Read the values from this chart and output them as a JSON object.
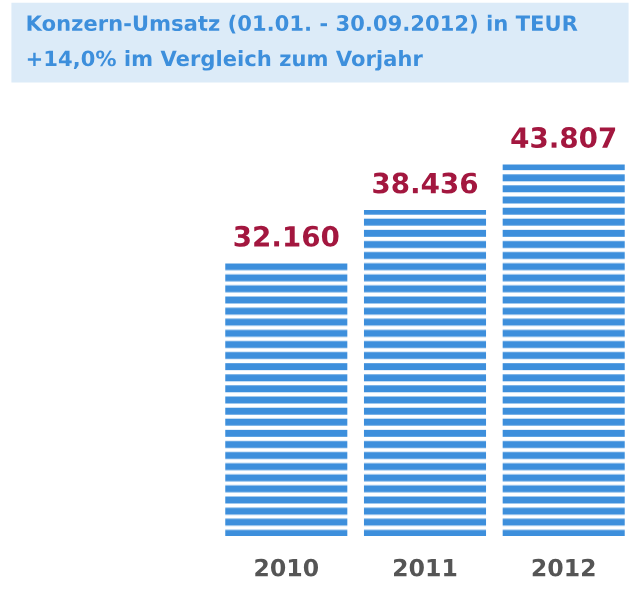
{
  "chart_data": {
    "type": "bar",
    "title": "Konzern-Umsatz (01.01. - 30.09.2012) in TEUR",
    "subtitle": "+14,0% im Vergleich zum Vorjahr",
    "categories": [
      "2010",
      "2011",
      "2012"
    ],
    "values": [
      32160,
      38436,
      43807
    ],
    "value_labels": [
      "32.160",
      "38.436",
      "43.807"
    ],
    "color": "#3d8fdc",
    "tick_labels": "x",
    "grid": false,
    "legend": false
  }
}
